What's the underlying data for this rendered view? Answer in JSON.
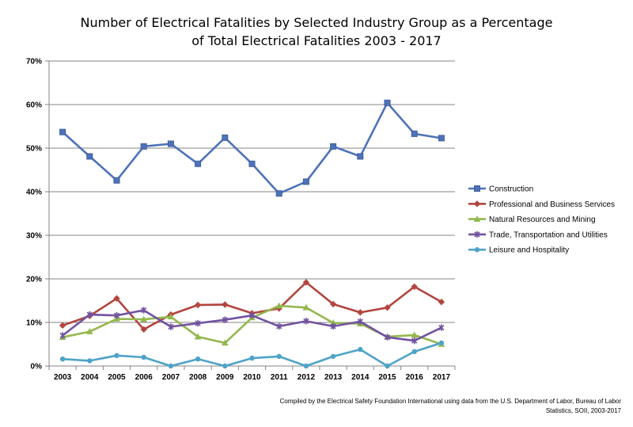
{
  "chart_data": {
    "type": "line",
    "title_lines": [
      "Number of Electrical Fatalities by Selected Industry Group as a Percentage",
      "of Total Electrical Fatalities 2003 - 2017"
    ],
    "xlabel": "",
    "ylabel": "",
    "ylim": [
      0,
      70
    ],
    "y_ticks": [
      "0%",
      "10%",
      "20%",
      "30%",
      "40%",
      "50%",
      "60%",
      "70%"
    ],
    "grid": true,
    "legend_position": "right",
    "categories": [
      "2003",
      "2004",
      "2005",
      "2006",
      "2007",
      "2008",
      "2009",
      "2010",
      "2011",
      "2012",
      "2013",
      "2014",
      "2015",
      "2016",
      "2017"
    ],
    "series": [
      {
        "name": "Construction",
        "color": "#4e72b8",
        "marker": "square",
        "values": [
          53.7,
          48.1,
          42.6,
          50.4,
          51.0,
          46.4,
          52.4,
          46.4,
          39.6,
          42.3,
          50.4,
          48.1,
          60.4,
          53.3,
          52.3
        ]
      },
      {
        "name": "Professional and Business Services",
        "color": "#b2453f",
        "marker": "diamond",
        "values": [
          9.3,
          11.5,
          15.5,
          8.4,
          11.8,
          14.0,
          14.1,
          12.1,
          13.2,
          19.2,
          14.2,
          12.3,
          13.4,
          18.2,
          14.7
        ]
      },
      {
        "name": "Natural Resources and Mining",
        "color": "#93b84e",
        "marker": "triangle",
        "values": [
          6.6,
          7.9,
          10.8,
          10.7,
          11.3,
          6.7,
          5.3,
          11.1,
          13.8,
          13.4,
          9.9,
          9.7,
          6.7,
          7.1,
          5.0
        ]
      },
      {
        "name": "Trade, Transportation and Utilities",
        "color": "#7153a0",
        "marker": "star",
        "values": [
          7.0,
          11.8,
          11.6,
          12.8,
          9.0,
          9.8,
          10.6,
          11.6,
          9.1,
          10.3,
          9.1,
          10.2,
          6.6,
          5.8,
          8.8
        ]
      },
      {
        "name": "Leisure and Hospitality",
        "color": "#4ea3c9",
        "marker": "circle",
        "values": [
          1.6,
          1.2,
          2.4,
          2.0,
          0.0,
          1.6,
          0.0,
          1.8,
          2.2,
          0.0,
          2.2,
          3.8,
          0.0,
          3.3,
          5.3
        ]
      }
    ],
    "source_lines": [
      "Compiled by the Electrical Safety Foundation International using data from the U.S. Department of Labor, Bureau of Labor",
      "Statistics, SOII, 2003-2017"
    ]
  }
}
